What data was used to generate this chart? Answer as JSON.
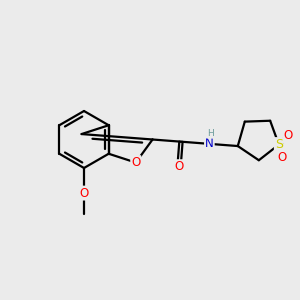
{
  "background_color": "#ebebeb",
  "bond_color": "#000000",
  "atom_colors": {
    "O": "#ff0000",
    "N": "#0000cd",
    "S": "#cccc00",
    "C": "#000000",
    "H": "#6a9a9a"
  },
  "lw": 1.6,
  "fontsize": 8.5
}
